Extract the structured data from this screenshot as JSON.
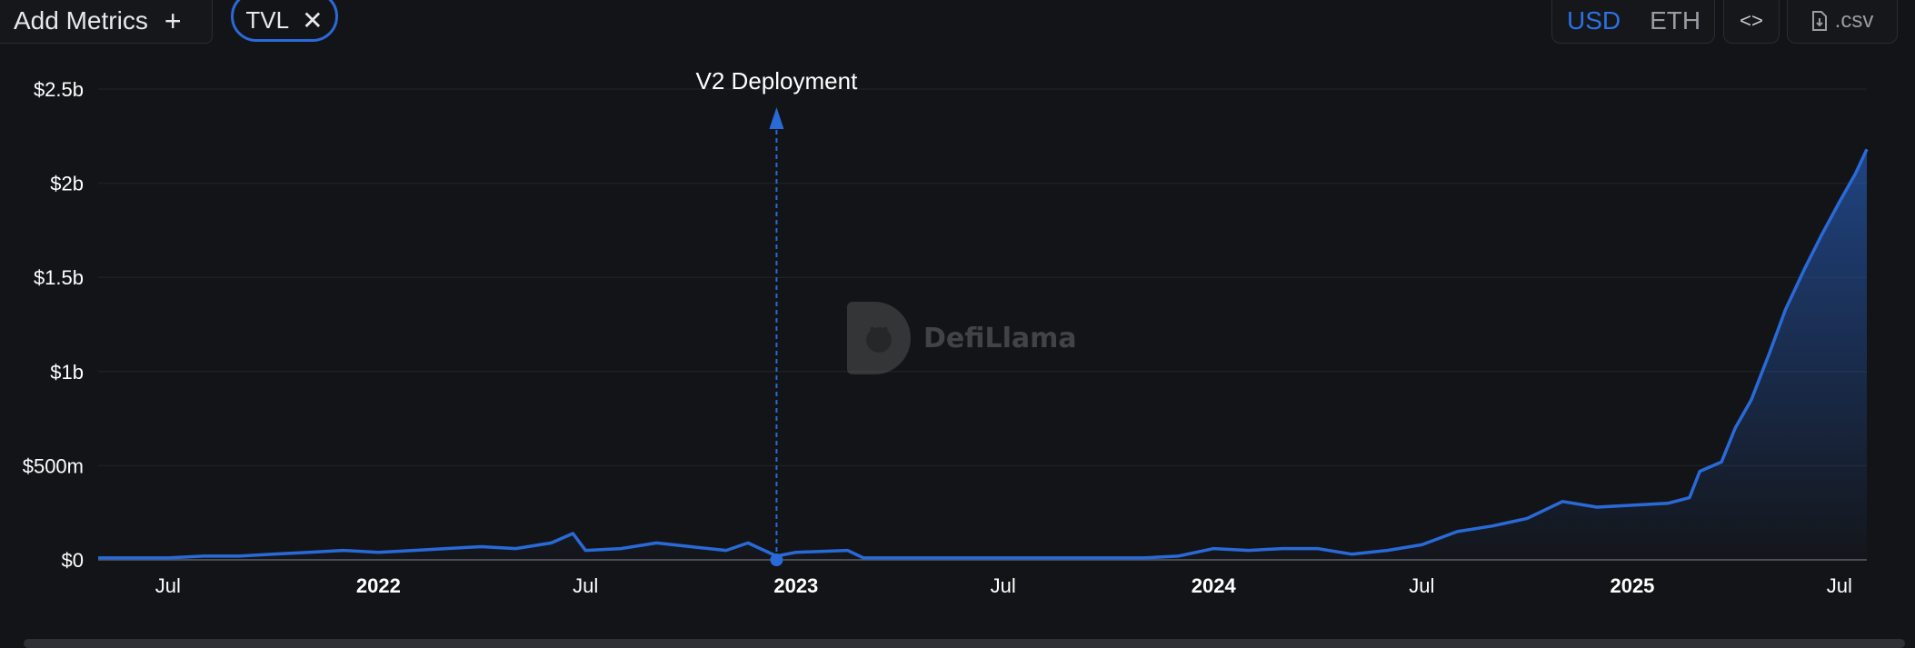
{
  "toolbar": {
    "add_metrics_label": "Add Metrics",
    "add_icon": "plus-icon",
    "metric_chip_label": "TVL",
    "remove_icon": "close-icon",
    "currency_options": [
      "USD",
      "ETH"
    ],
    "currency_selected": "USD",
    "embed_icon": "code-icon",
    "csv_label": ".csv",
    "csv_icon": "download-file-icon"
  },
  "watermark": {
    "brand": "DefiLlama",
    "icon": "llama-logo-icon"
  },
  "colors": {
    "background": "#131417",
    "series": "#2a6ad8",
    "accent": "#2a72e5",
    "grid": "#1d1f23"
  },
  "chart_data": {
    "type": "area",
    "title": "",
    "xlabel": "",
    "ylabel": "",
    "y_tick_labels": [
      "$0",
      "$500m",
      "$1b",
      "$1.5b",
      "$2b",
      "$2.5b"
    ],
    "y_ticks": [
      0,
      0.5,
      1.0,
      1.5,
      2.0,
      2.5
    ],
    "y_unit": "USD billions",
    "ylim": [
      0,
      2.5
    ],
    "x_tick_labels": [
      "Jul",
      "2022",
      "Jul",
      "2023",
      "Jul",
      "2024",
      "Jul",
      "2025",
      "Jul"
    ],
    "x_ticks": [
      "2021-07-01",
      "2022-01-01",
      "2022-07-01",
      "2023-01-01",
      "2023-07-01",
      "2024-01-01",
      "2024-07-01",
      "2025-01-01",
      "2025-07-01"
    ],
    "xlim": [
      "2021-05-01",
      "2025-07-25"
    ],
    "grid": "horizontal",
    "annotations": [
      {
        "date": "2022-12-15",
        "label": "V2 Deployment"
      }
    ],
    "series": [
      {
        "name": "TVL",
        "x": [
          "2021-05-01",
          "2021-06-01",
          "2021-07-01",
          "2021-08-01",
          "2021-09-01",
          "2021-10-01",
          "2021-11-01",
          "2021-12-01",
          "2022-01-01",
          "2022-02-01",
          "2022-03-01",
          "2022-04-01",
          "2022-05-01",
          "2022-06-01",
          "2022-06-20",
          "2022-07-01",
          "2022-08-01",
          "2022-09-01",
          "2022-10-01",
          "2022-11-01",
          "2022-11-20",
          "2022-12-15",
          "2023-01-01",
          "2023-02-15",
          "2023-03-01",
          "2023-04-01",
          "2023-05-01",
          "2023-06-01",
          "2023-07-01",
          "2023-08-01",
          "2023-09-01",
          "2023-10-01",
          "2023-11-01",
          "2023-12-01",
          "2024-01-01",
          "2024-02-01",
          "2024-03-01",
          "2024-04-01",
          "2024-05-01",
          "2024-06-01",
          "2024-07-01",
          "2024-08-01",
          "2024-09-01",
          "2024-10-01",
          "2024-11-01",
          "2024-12-01",
          "2025-01-01",
          "2025-02-01",
          "2025-02-20",
          "2025-03-01",
          "2025-03-20",
          "2025-04-01",
          "2025-04-15",
          "2025-05-01",
          "2025-05-15",
          "2025-06-01",
          "2025-06-15",
          "2025-07-01",
          "2025-07-15",
          "2025-07-25"
        ],
        "values": [
          0.01,
          0.01,
          0.01,
          0.02,
          0.02,
          0.03,
          0.04,
          0.05,
          0.04,
          0.05,
          0.06,
          0.07,
          0.06,
          0.09,
          0.14,
          0.05,
          0.06,
          0.09,
          0.07,
          0.05,
          0.09,
          0.02,
          0.04,
          0.05,
          0.01,
          0.01,
          0.01,
          0.01,
          0.01,
          0.01,
          0.01,
          0.01,
          0.01,
          0.02,
          0.06,
          0.05,
          0.06,
          0.06,
          0.03,
          0.05,
          0.08,
          0.15,
          0.18,
          0.22,
          0.31,
          0.28,
          0.29,
          0.3,
          0.33,
          0.47,
          0.52,
          0.7,
          0.85,
          1.1,
          1.33,
          1.55,
          1.72,
          1.9,
          2.05,
          2.18
        ]
      }
    ]
  }
}
